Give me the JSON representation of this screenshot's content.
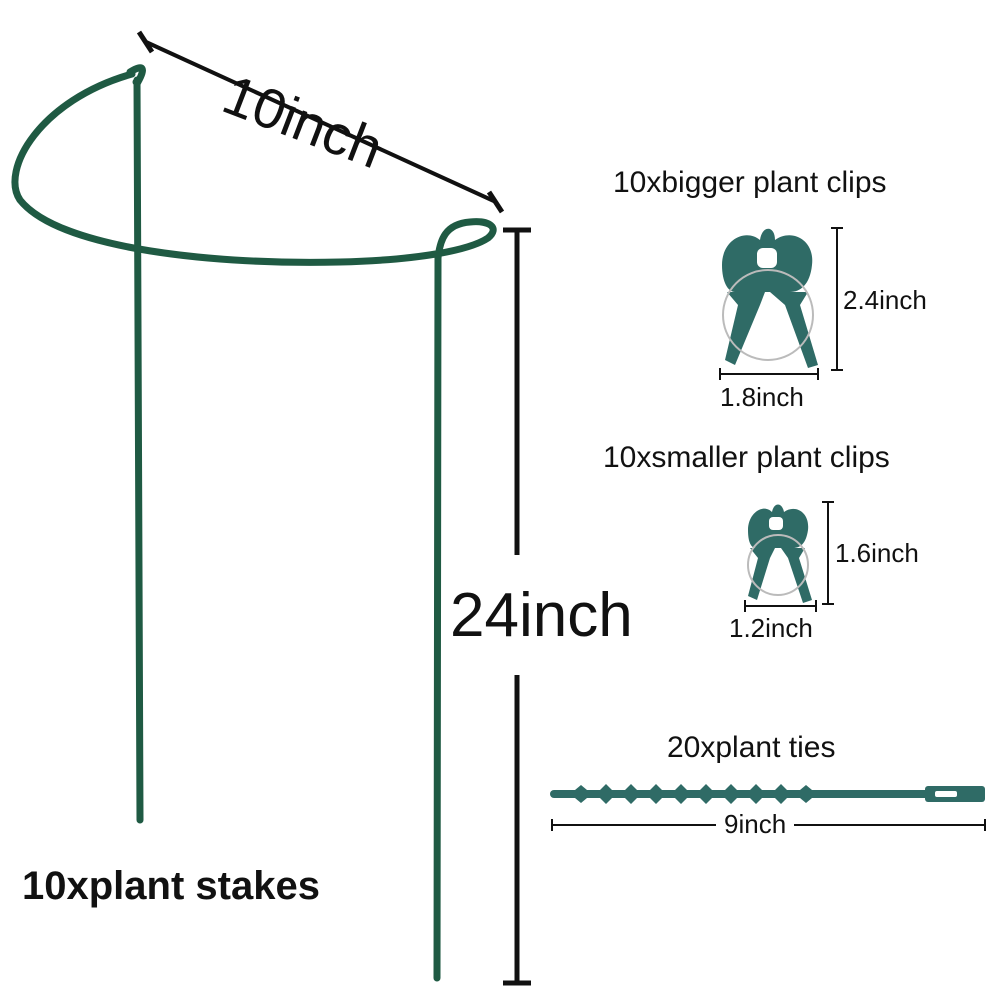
{
  "colors": {
    "stake_green": "#1f5a43",
    "clip_teal": "#2f6b66",
    "dimension_line": "#111111",
    "background": "#ffffff"
  },
  "plant_stakes": {
    "width_label": "10inch",
    "height_label": "24inch",
    "quantity_label": "10xplant stakes"
  },
  "bigger_clips": {
    "title": "10xbigger plant clips",
    "height_label": "2.4inch",
    "width_label": "1.8inch"
  },
  "smaller_clips": {
    "title": "10xsmaller plant clips",
    "height_label": "1.6inch",
    "width_label": "1.2inch"
  },
  "plant_ties": {
    "title": "20xplant ties",
    "length_label": "9inch"
  }
}
